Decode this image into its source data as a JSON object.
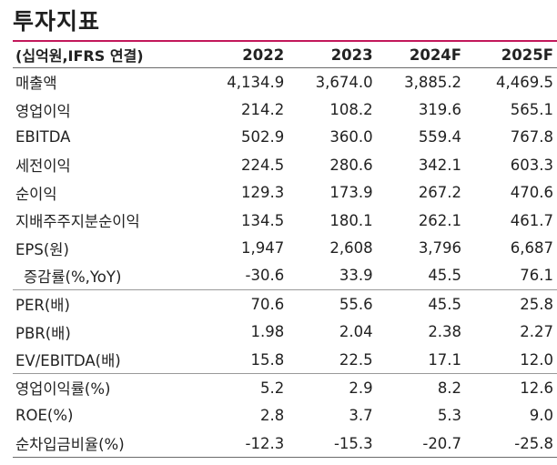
{
  "title": "투자지표",
  "header": {
    "label": "(십억원,IFRS 연결)",
    "years": [
      "2022",
      "2023",
      "2024F",
      "2025F"
    ]
  },
  "rows": [
    {
      "label": "매출액",
      "values": [
        "4,134.9",
        "3,674.0",
        "3,885.2",
        "4,469.5"
      ]
    },
    {
      "label": "영업이익",
      "values": [
        "214.2",
        "108.2",
        "319.6",
        "565.1"
      ]
    },
    {
      "label": "EBITDA",
      "values": [
        "502.9",
        "360.0",
        "559.4",
        "767.8"
      ]
    },
    {
      "label": "세전이익",
      "values": [
        "224.5",
        "280.6",
        "342.1",
        "603.3"
      ]
    },
    {
      "label": "순이익",
      "values": [
        "129.3",
        "173.9",
        "267.2",
        "470.6"
      ]
    },
    {
      "label": "지배주주지분순이익",
      "values": [
        "134.5",
        "180.1",
        "262.1",
        "461.7"
      ]
    },
    {
      "label": "EPS(원)",
      "values": [
        "1,947",
        "2,608",
        "3,796",
        "6,687"
      ]
    },
    {
      "label": "증감률(%,YoY)",
      "values": [
        "-30.6",
        "33.9",
        "45.5",
        "76.1"
      ]
    },
    {
      "label": "PER(배)",
      "values": [
        "70.6",
        "55.6",
        "45.5",
        "25.8"
      ]
    },
    {
      "label": "PBR(배)",
      "values": [
        "1.98",
        "2.04",
        "2.38",
        "2.27"
      ]
    },
    {
      "label": "EV/EBITDA(배)",
      "values": [
        "15.8",
        "22.5",
        "17.1",
        "12.0"
      ]
    },
    {
      "label": "영업이익률(%)",
      "values": [
        "5.2",
        "2.9",
        "8.2",
        "12.6"
      ]
    },
    {
      "label": "ROE(%)",
      "values": [
        "2.8",
        "3.7",
        "5.3",
        "9.0"
      ]
    },
    {
      "label": "순차입금비율(%)",
      "values": [
        "-12.3",
        "-15.3",
        "-20.7",
        "-25.8"
      ]
    }
  ]
}
